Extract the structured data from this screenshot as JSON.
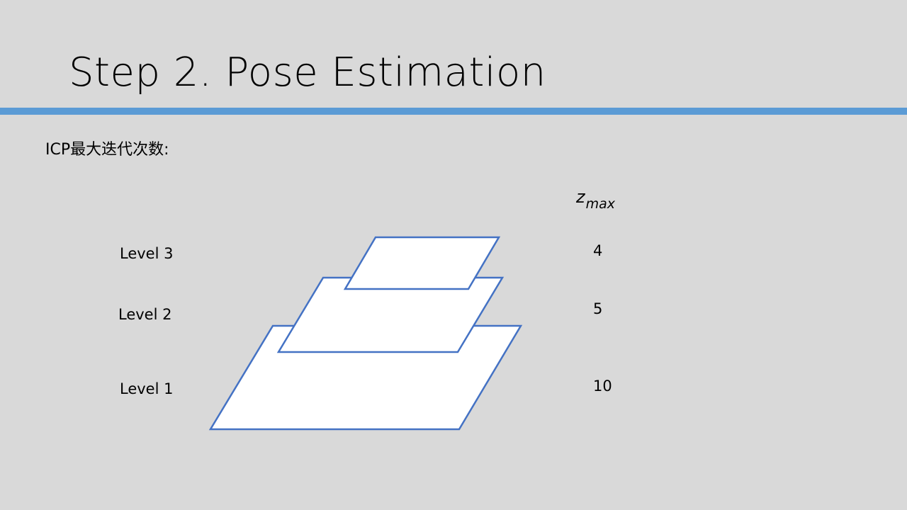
{
  "title": "Step 2. Pose Estimation",
  "subtitle": "ICP最大迭代次数:",
  "header": {
    "symbol": "z",
    "subscript": "max"
  },
  "levels": [
    {
      "label": "Level 3",
      "value": "4"
    },
    {
      "label": "Level 2",
      "value": "5"
    },
    {
      "label": "Level 1",
      "value": "10"
    }
  ],
  "colors": {
    "background": "#d9d9d9",
    "accent": "#5b9bd5",
    "shape_stroke": "#4472c4",
    "shape_fill": "#ffffff"
  }
}
